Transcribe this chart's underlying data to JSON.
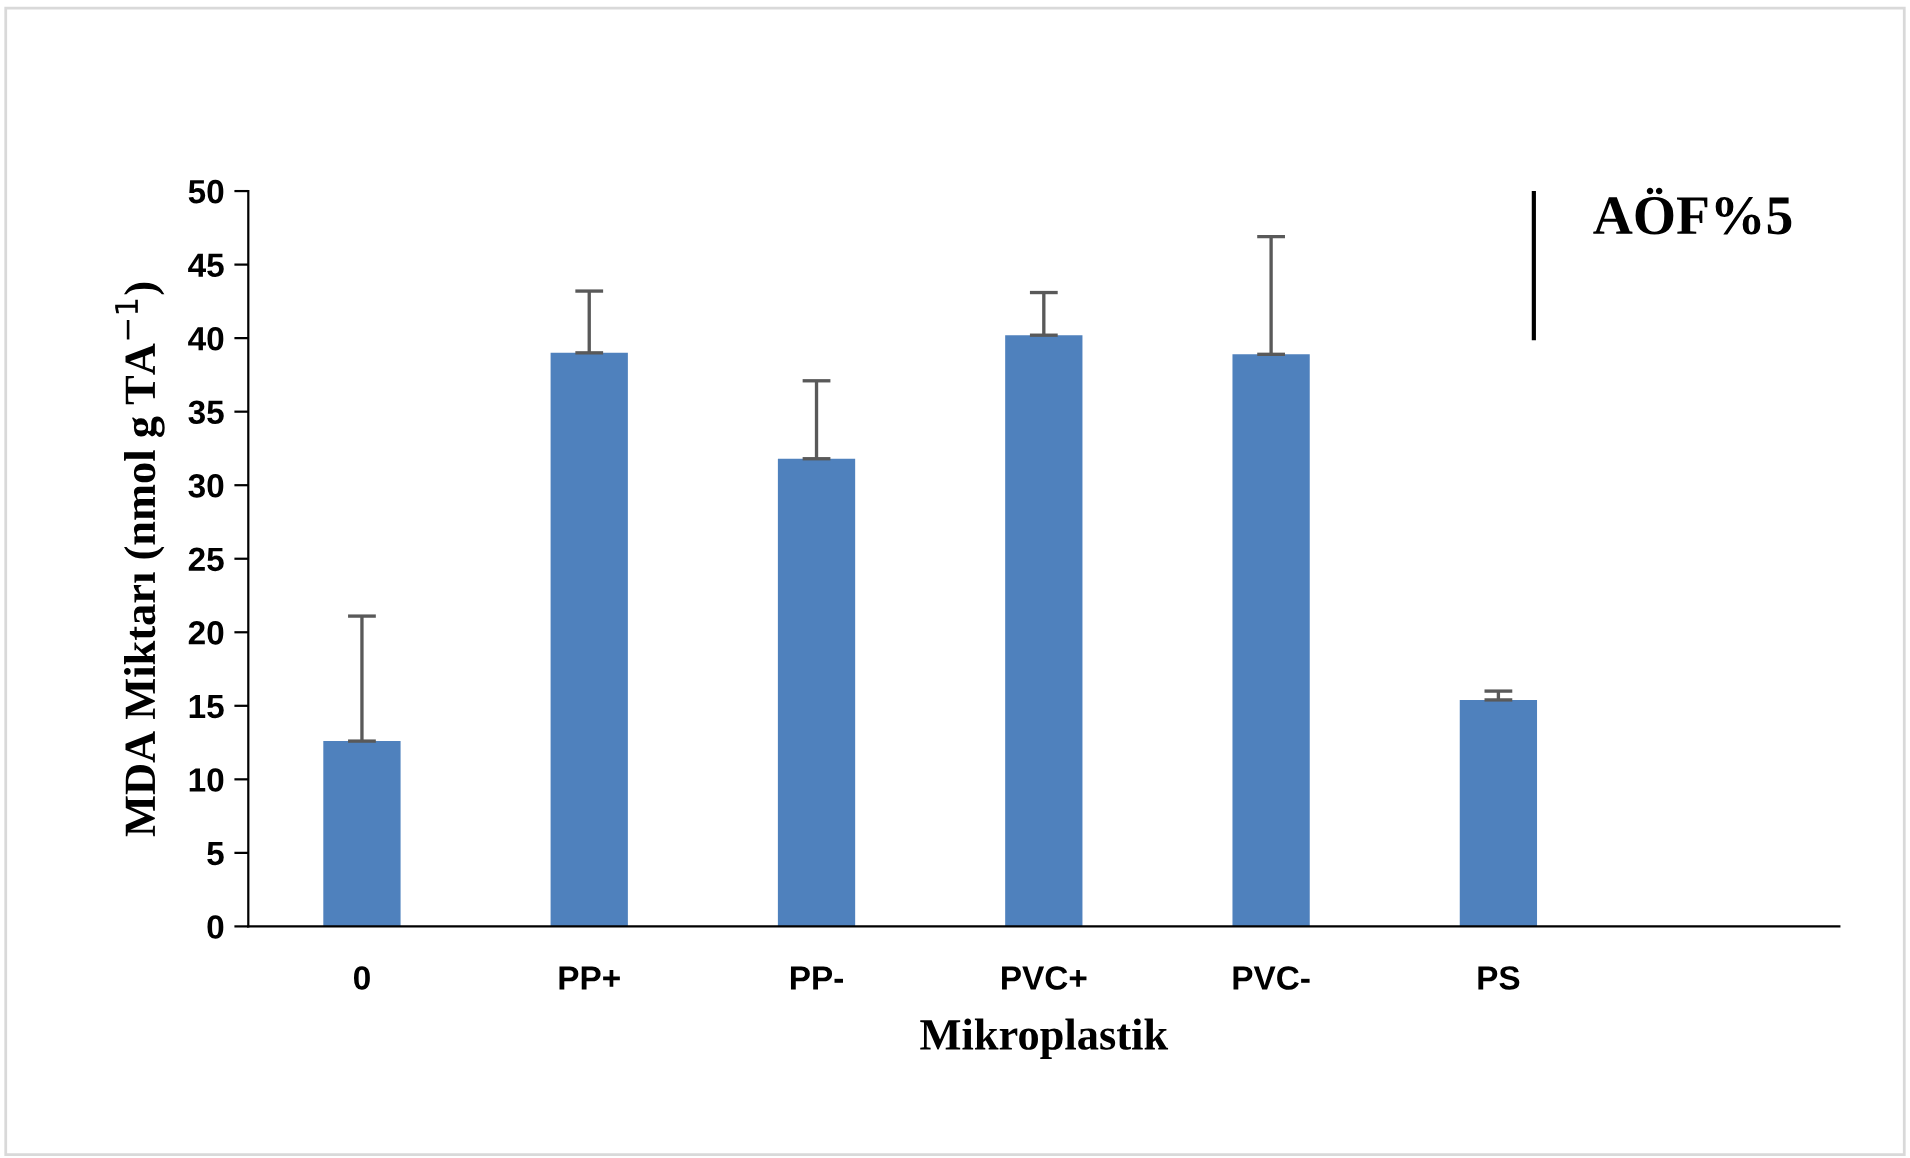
{
  "chart_data": {
    "type": "bar",
    "xlabel": "Mikroplastik",
    "ylabel": "MDA Miktarı (nmol g TA$^{−1}$)",
    "categories": [
      "0",
      "PP+",
      "PP-",
      "PVC+",
      "PVC-",
      "PS",
      null
    ],
    "values": [
      12.6,
      39.0,
      31.8,
      40.2,
      38.9,
      15.4,
      null
    ],
    "errors": [
      [
        12.6,
        21.1
      ],
      [
        39.0,
        43.2
      ],
      [
        31.8,
        37.1
      ],
      [
        40.2,
        43.1
      ],
      [
        38.9,
        46.9
      ],
      [
        15.4,
        16.0
      ],
      null
    ],
    "color": "#4f81bd",
    "ylim": [
      0,
      50
    ],
    "yticks": [
      0,
      5,
      10,
      15,
      20,
      25,
      30,
      35,
      40,
      45,
      50
    ],
    "annotations": [
      "AÖF%5"
    ],
    "grid": false,
    "legend": false
  }
}
